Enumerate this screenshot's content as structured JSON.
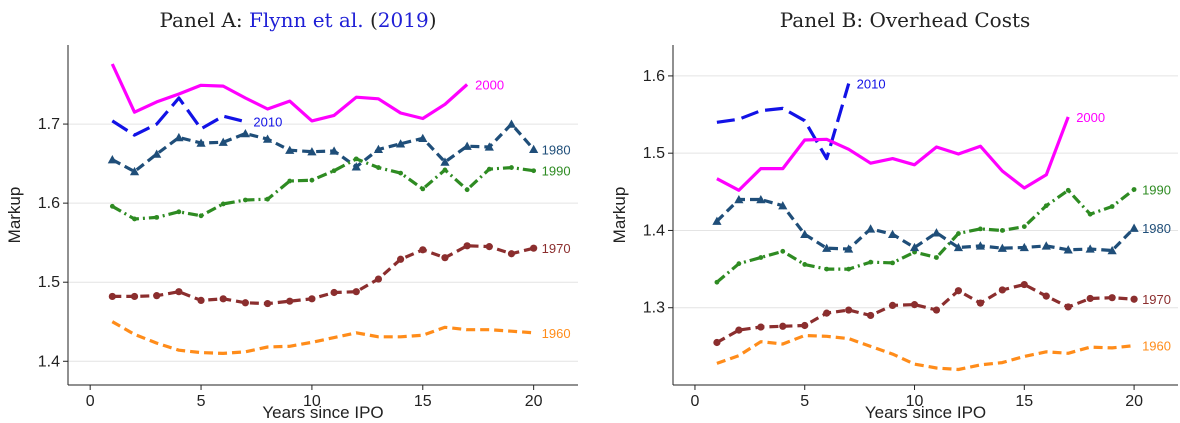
{
  "figure": {
    "panels": [
      {
        "title": "Panel A: ",
        "title_cite": "Flynn et al.",
        "title_open": " (",
        "title_year": "2019",
        "title_close": ")"
      },
      {
        "title": "Panel B: Overhead Costs"
      }
    ]
  },
  "chart_data": [
    {
      "type": "line",
      "title": "Panel A: Flynn et al. (2019)",
      "xlabel": "Years since IPO",
      "ylabel": "Markup",
      "xlim": [
        -1,
        22
      ],
      "ylim": [
        1.37,
        1.8
      ],
      "xticks": [
        0,
        5,
        10,
        15,
        20
      ],
      "xtick_labels": [
        "0",
        "5",
        "10",
        "15",
        "20"
      ],
      "yticks": [
        1.4,
        1.5,
        1.6,
        1.7
      ],
      "ytick_labels": [
        "1.4",
        "1.5",
        "1.6",
        "1.7"
      ],
      "grid": true,
      "series": [
        {
          "name": "2000",
          "color": "#ff00ff",
          "style": "solid",
          "marker": "none",
          "x": [
            1,
            2,
            3,
            4,
            5,
            6,
            7,
            8,
            9,
            10,
            11,
            12,
            13,
            14,
            15,
            16,
            17
          ],
          "y": [
            1.776,
            1.715,
            1.728,
            1.738,
            1.749,
            1.748,
            1.733,
            1.719,
            1.729,
            1.704,
            1.711,
            1.734,
            1.732,
            1.714,
            1.707,
            1.725,
            1.75
          ]
        },
        {
          "name": "2010",
          "color": "#1212e6",
          "style": "longdash",
          "marker": "none",
          "x": [
            1,
            2,
            3,
            4,
            5,
            6,
            7
          ],
          "y": [
            1.704,
            1.686,
            1.7,
            1.733,
            1.694,
            1.71,
            1.703
          ]
        },
        {
          "name": "1980",
          "color": "#1f4e79",
          "style": "dash",
          "marker": "triangle",
          "x": [
            1,
            2,
            3,
            4,
            5,
            6,
            7,
            8,
            9,
            10,
            11,
            12,
            13,
            14,
            15,
            16,
            17,
            18,
            19,
            20
          ],
          "y": [
            1.655,
            1.64,
            1.662,
            1.683,
            1.676,
            1.677,
            1.688,
            1.681,
            1.667,
            1.665,
            1.666,
            1.646,
            1.668,
            1.675,
            1.682,
            1.652,
            1.672,
            1.671,
            1.7,
            1.668
          ]
        },
        {
          "name": "1990",
          "color": "#2e8b22",
          "style": "dashdot",
          "marker": "small-dot",
          "x": [
            1,
            2,
            3,
            4,
            5,
            6,
            7,
            8,
            9,
            10,
            11,
            12,
            13,
            14,
            15,
            16,
            17,
            18,
            19,
            20
          ],
          "y": [
            1.596,
            1.58,
            1.582,
            1.589,
            1.584,
            1.599,
            1.604,
            1.605,
            1.628,
            1.629,
            1.641,
            1.656,
            1.645,
            1.638,
            1.618,
            1.642,
            1.617,
            1.643,
            1.645,
            1.641
          ]
        },
        {
          "name": "1970",
          "color": "#8b2e2e",
          "style": "dash",
          "marker": "circle",
          "x": [
            1,
            2,
            3,
            4,
            5,
            6,
            7,
            8,
            9,
            10,
            11,
            12,
            13,
            14,
            15,
            16,
            17,
            18,
            19,
            20
          ],
          "y": [
            1.482,
            1.482,
            1.483,
            1.488,
            1.477,
            1.479,
            1.474,
            1.473,
            1.476,
            1.479,
            1.487,
            1.488,
            1.504,
            1.529,
            1.541,
            1.531,
            1.546,
            1.545,
            1.536,
            1.543
          ]
        },
        {
          "name": "1960",
          "color": "#ff8c1a",
          "style": "dash",
          "marker": "none",
          "x": [
            1,
            2,
            3,
            4,
            5,
            6,
            7,
            8,
            9,
            10,
            11,
            12,
            13,
            14,
            15,
            16,
            17,
            18,
            19,
            20
          ],
          "y": [
            1.45,
            1.434,
            1.423,
            1.414,
            1.411,
            1.41,
            1.412,
            1.418,
            1.419,
            1.424,
            1.43,
            1.436,
            1.431,
            1.431,
            1.433,
            1.443,
            1.44,
            1.44,
            1.438,
            1.436
          ]
        }
      ]
    },
    {
      "type": "line",
      "title": "Panel B: Overhead Costs",
      "xlabel": "Years since IPO",
      "ylabel": "Markup",
      "xlim": [
        -1,
        22
      ],
      "ylim": [
        1.2,
        1.64
      ],
      "xticks": [
        0,
        5,
        10,
        15,
        20
      ],
      "xtick_labels": [
        "0",
        "5",
        "10",
        "15",
        "20"
      ],
      "yticks": [
        1.3,
        1.4,
        1.5,
        1.6
      ],
      "ytick_labels": [
        "1.3",
        "1.4",
        "1.5",
        "1.6"
      ],
      "grid": true,
      "series": [
        {
          "name": "2010",
          "color": "#1212e6",
          "style": "longdash",
          "marker": "none",
          "x": [
            1,
            2,
            3,
            4,
            5,
            6,
            7
          ],
          "y": [
            1.54,
            1.544,
            1.555,
            1.558,
            1.542,
            1.493,
            1.59
          ]
        },
        {
          "name": "2000",
          "color": "#ff00ff",
          "style": "solid",
          "marker": "none",
          "x": [
            1,
            2,
            3,
            4,
            5,
            6,
            7,
            8,
            9,
            10,
            11,
            12,
            13,
            14,
            15,
            16,
            17
          ],
          "y": [
            1.467,
            1.452,
            1.48,
            1.48,
            1.517,
            1.518,
            1.505,
            1.487,
            1.493,
            1.485,
            1.508,
            1.499,
            1.509,
            1.477,
            1.455,
            1.472,
            1.547
          ]
        },
        {
          "name": "1990",
          "color": "#2e8b22",
          "style": "dashdot",
          "marker": "small-dot",
          "x": [
            1,
            2,
            3,
            4,
            5,
            6,
            7,
            8,
            9,
            10,
            11,
            12,
            13,
            14,
            15,
            16,
            17,
            18,
            19,
            20
          ],
          "y": [
            1.333,
            1.357,
            1.365,
            1.373,
            1.356,
            1.35,
            1.35,
            1.359,
            1.358,
            1.372,
            1.365,
            1.396,
            1.402,
            1.4,
            1.405,
            1.432,
            1.452,
            1.421,
            1.431,
            1.453
          ]
        },
        {
          "name": "1980",
          "color": "#1f4e79",
          "style": "dash",
          "marker": "triangle",
          "x": [
            1,
            2,
            3,
            4,
            5,
            6,
            7,
            8,
            9,
            10,
            11,
            12,
            13,
            14,
            15,
            16,
            17,
            18,
            19,
            20
          ],
          "y": [
            1.412,
            1.44,
            1.44,
            1.432,
            1.395,
            1.377,
            1.376,
            1.402,
            1.395,
            1.378,
            1.397,
            1.378,
            1.38,
            1.377,
            1.378,
            1.38,
            1.375,
            1.376,
            1.374,
            1.403
          ]
        },
        {
          "name": "1970",
          "color": "#8b2e2e",
          "style": "dash",
          "marker": "circle",
          "x": [
            1,
            2,
            3,
            4,
            5,
            6,
            7,
            8,
            9,
            10,
            11,
            12,
            13,
            14,
            15,
            16,
            17,
            18,
            19,
            20
          ],
          "y": [
            1.255,
            1.271,
            1.275,
            1.276,
            1.277,
            1.293,
            1.297,
            1.29,
            1.303,
            1.304,
            1.297,
            1.322,
            1.306,
            1.323,
            1.33,
            1.315,
            1.301,
            1.312,
            1.313,
            1.311
          ]
        },
        {
          "name": "1960",
          "color": "#ff8c1a",
          "style": "dash",
          "marker": "none",
          "x": [
            1,
            2,
            3,
            4,
            5,
            6,
            7,
            8,
            9,
            10,
            11,
            12,
            13,
            14,
            15,
            16,
            17,
            18,
            19,
            20
          ],
          "y": [
            1.228,
            1.238,
            1.256,
            1.253,
            1.264,
            1.263,
            1.26,
            1.25,
            1.24,
            1.227,
            1.222,
            1.22,
            1.226,
            1.229,
            1.237,
            1.243,
            1.241,
            1.249,
            1.248,
            1.251
          ]
        }
      ]
    }
  ]
}
